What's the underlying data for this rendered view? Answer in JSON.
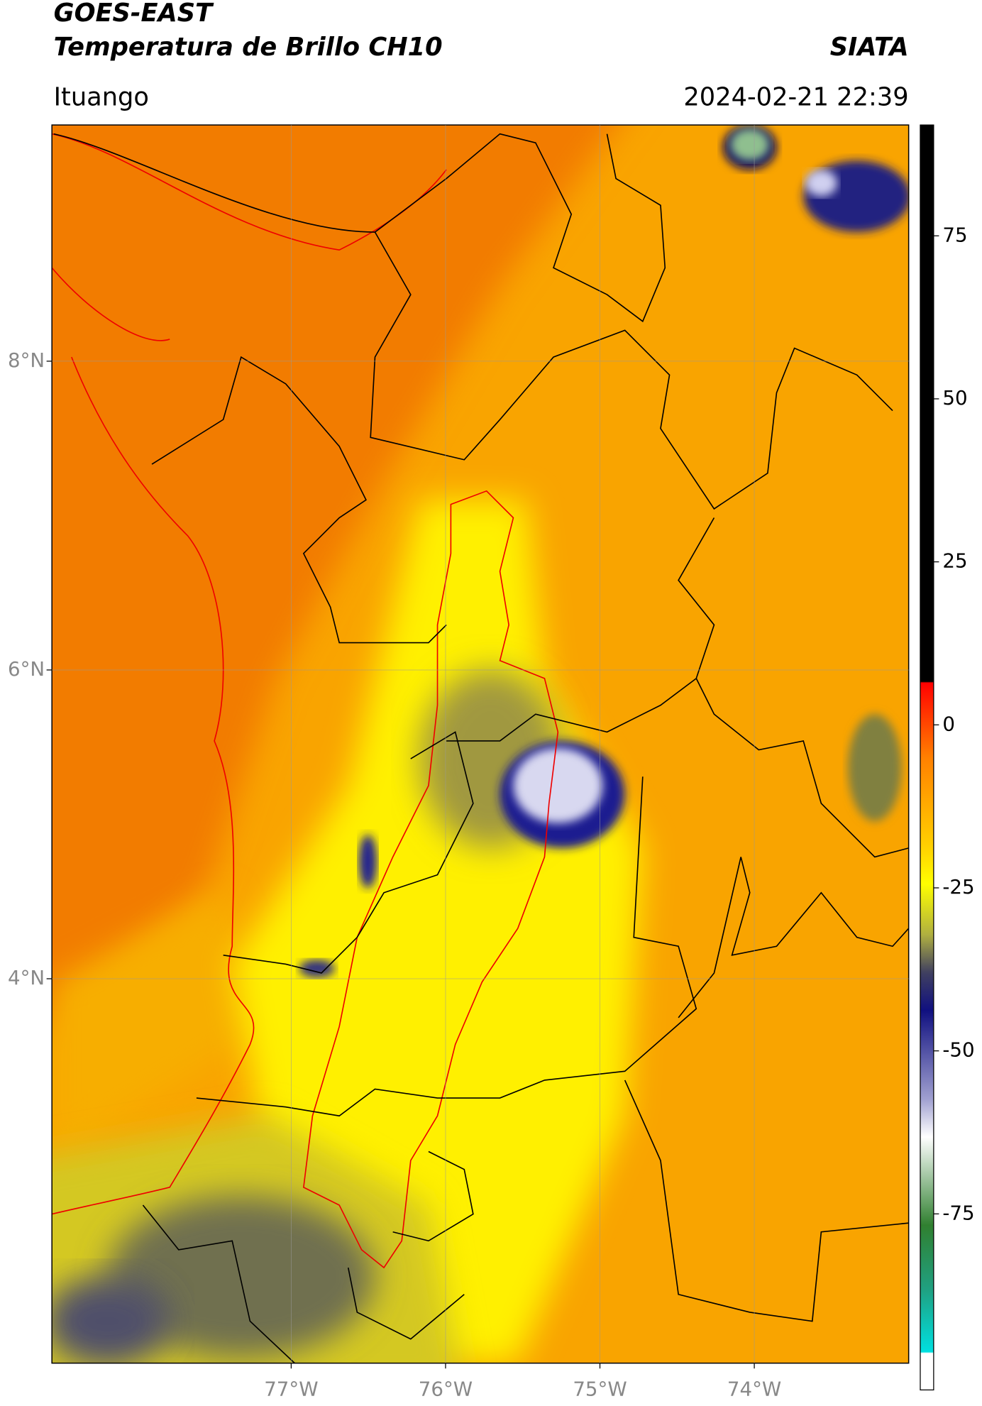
{
  "header": {
    "satellite": "GOES-EAST",
    "product": "Temperatura de Brillo CH10",
    "agency": "SIATA",
    "region": "Ituango",
    "datetime": "2024-02-21 22:39"
  },
  "map": {
    "xlim": [
      -78.55,
      -73.0
    ],
    "ylim": [
      1.51,
      9.53
    ],
    "xticks": [
      {
        "value": -77,
        "label": "77°W"
      },
      {
        "value": -76,
        "label": "76°W"
      },
      {
        "value": -75,
        "label": "75°W"
      },
      {
        "value": -74,
        "label": "74°W"
      }
    ],
    "yticks": [
      {
        "value": 8,
        "label": "8°N"
      },
      {
        "value": 6,
        "label": "6°N"
      },
      {
        "value": 4,
        "label": "4°N"
      }
    ],
    "grid": true
  },
  "colorbar": {
    "lim": [
      -102,
      92
    ],
    "ticks": [
      75,
      50,
      25,
      0,
      -25,
      -50,
      -75
    ]
  }
}
